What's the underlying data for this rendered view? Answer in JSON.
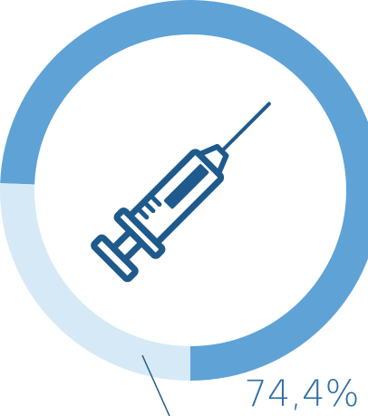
{
  "chart_data": {
    "type": "pie",
    "style": "donut",
    "title": "",
    "segments": [
      {
        "value": 74.4,
        "label": "74,4%",
        "color": "#5fa2d6",
        "highlight": true
      },
      {
        "value": 25.6,
        "label": "",
        "color": "#d6e9f6",
        "highlight": false
      }
    ],
    "center_icon": "syringe-icon",
    "icon_color": "#1e5a8c",
    "legend": "none",
    "grid": false
  }
}
